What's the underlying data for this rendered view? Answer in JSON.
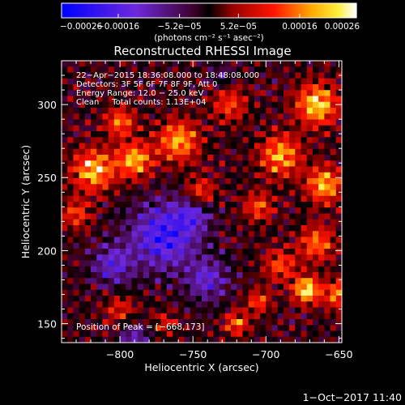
{
  "chart_data": {
    "type": "heatmap",
    "title": "Reconstructed RHESSI Image",
    "xlabel": "Heliocentric X (arcsec)",
    "ylabel": "Heliocentric Y (arcsec)",
    "xlim": [
      -840,
      -648
    ],
    "ylim": [
      137,
      330
    ],
    "x_ticks": [
      -800,
      -750,
      -700,
      -650
    ],
    "y_ticks": [
      150,
      200,
      250,
      300
    ],
    "x_tick_labels": [
      "−800",
      "−750",
      "−700",
      "−650"
    ],
    "y_tick_labels": [
      "150",
      "200",
      "250",
      "300"
    ],
    "colorbar": {
      "min": -0.00026,
      "max": 0.00026,
      "ticks": [
        -0.00026,
        -0.00016,
        -5.2e-05,
        5.2e-05,
        0.00016,
        0.00026
      ],
      "tick_labels": [
        "−0.00026",
        "−0.00016",
        "−5.2e−05",
        "5.2e−05",
        "0.00016",
        "0.00026"
      ],
      "unit_label": "(photons cm⁻² s⁻¹ asec⁻²)"
    },
    "annotations": [
      "22−Apr−2015 18:36:08.000 to 18:48:08.000",
      "Detectors: 3F 5F 6F 7F 8F 9F, Att 0",
      "Energy Range: 12.0 − 25.0 keV",
      "Clean     Total counts: 1.13E+04"
    ],
    "peak_label": "Position of Peak = [−668,173]",
    "peak_position": [
      -668,
      173
    ],
    "colormap": "rhessi-blue-purple-red-yellow-white"
  },
  "footer": {
    "timestamp": "1−Oct−2017 11:40"
  }
}
